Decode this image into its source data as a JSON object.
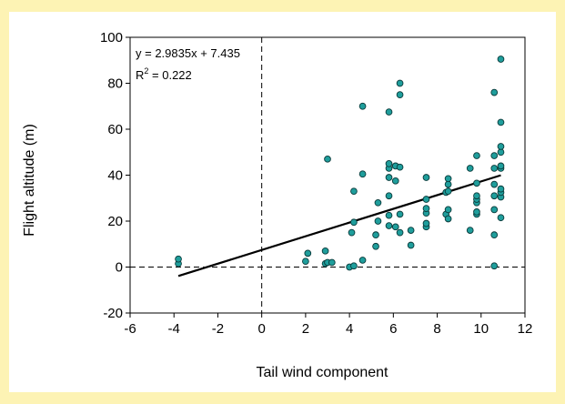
{
  "chart_data": {
    "type": "scatter",
    "xlabel": "Tail wind component",
    "ylabel": "Flight altitude (m)",
    "xlim": [
      -6,
      12
    ],
    "ylim": [
      -20,
      100
    ],
    "x_ticks": [
      -6,
      -4,
      -2,
      0,
      2,
      4,
      6,
      8,
      10,
      12
    ],
    "y_ticks": [
      -20,
      0,
      20,
      40,
      60,
      80,
      100
    ],
    "x_tick_labels": [
      "-6",
      "-4",
      "-2",
      "0",
      "2",
      "4",
      "6",
      "8",
      "10",
      "12"
    ],
    "y_tick_labels": [
      "-20",
      "0",
      "20",
      "40",
      "60",
      "80",
      "100"
    ],
    "grid": false,
    "reference_lines": {
      "x": 0,
      "y": 0,
      "style": "dashed"
    },
    "regression": {
      "slope": 2.9835,
      "intercept": 7.435,
      "x_range": [
        -3.8,
        10.9
      ],
      "equation_label": "y = 2.9835x + 7.435",
      "r2_prefix": "R",
      "r2_sup": "2",
      "r2_value_label": " = 0.222"
    },
    "marker_color": "#1f9e9c",
    "marker_edge": "#0a3a3a",
    "points": [
      {
        "x": -3.8,
        "y": 1.5
      },
      {
        "x": -3.8,
        "y": 3.5
      },
      {
        "x": 2.0,
        "y": 2.5
      },
      {
        "x": 2.1,
        "y": 6.0
      },
      {
        "x": 2.9,
        "y": 1.5
      },
      {
        "x": 2.9,
        "y": 7.0
      },
      {
        "x": 3.0,
        "y": 2.0
      },
      {
        "x": 3.0,
        "y": 47.0
      },
      {
        "x": 3.2,
        "y": 2.0
      },
      {
        "x": 4.0,
        "y": 0.0
      },
      {
        "x": 4.1,
        "y": 15.0
      },
      {
        "x": 4.2,
        "y": 0.5
      },
      {
        "x": 4.2,
        "y": 19.5
      },
      {
        "x": 4.2,
        "y": 33.0
      },
      {
        "x": 4.6,
        "y": 3.0
      },
      {
        "x": 4.6,
        "y": 40.5
      },
      {
        "x": 4.6,
        "y": 70.0
      },
      {
        "x": 5.2,
        "y": 9.0
      },
      {
        "x": 5.2,
        "y": 14.0
      },
      {
        "x": 5.3,
        "y": 20.0
      },
      {
        "x": 5.3,
        "y": 28.0
      },
      {
        "x": 5.8,
        "y": 18.0
      },
      {
        "x": 5.8,
        "y": 22.5
      },
      {
        "x": 5.8,
        "y": 31.0
      },
      {
        "x": 5.8,
        "y": 39.0
      },
      {
        "x": 5.8,
        "y": 43.0
      },
      {
        "x": 5.8,
        "y": 45.0
      },
      {
        "x": 5.8,
        "y": 67.5
      },
      {
        "x": 6.1,
        "y": 17.5
      },
      {
        "x": 6.1,
        "y": 37.5
      },
      {
        "x": 6.1,
        "y": 44.0
      },
      {
        "x": 6.3,
        "y": 15.0
      },
      {
        "x": 6.3,
        "y": 23.0
      },
      {
        "x": 6.3,
        "y": 43.5
      },
      {
        "x": 6.3,
        "y": 75.0
      },
      {
        "x": 6.3,
        "y": 80.0
      },
      {
        "x": 6.8,
        "y": 9.5
      },
      {
        "x": 6.8,
        "y": 16.0
      },
      {
        "x": 7.5,
        "y": 17.5
      },
      {
        "x": 7.5,
        "y": 19.0
      },
      {
        "x": 7.5,
        "y": 23.5
      },
      {
        "x": 7.5,
        "y": 25.5
      },
      {
        "x": 7.5,
        "y": 29.5
      },
      {
        "x": 7.5,
        "y": 39.0
      },
      {
        "x": 8.4,
        "y": 23.0
      },
      {
        "x": 8.4,
        "y": 32.5
      },
      {
        "x": 8.5,
        "y": 21.0
      },
      {
        "x": 8.5,
        "y": 25.0
      },
      {
        "x": 8.5,
        "y": 33.0
      },
      {
        "x": 8.5,
        "y": 36.0
      },
      {
        "x": 8.5,
        "y": 38.5
      },
      {
        "x": 9.5,
        "y": 16.0
      },
      {
        "x": 9.5,
        "y": 43.0
      },
      {
        "x": 9.8,
        "y": 23.0
      },
      {
        "x": 9.8,
        "y": 24.0
      },
      {
        "x": 9.8,
        "y": 28.0
      },
      {
        "x": 9.8,
        "y": 29.5
      },
      {
        "x": 9.8,
        "y": 31.0
      },
      {
        "x": 9.8,
        "y": 36.5
      },
      {
        "x": 9.8,
        "y": 48.5
      },
      {
        "x": 10.6,
        "y": 0.5
      },
      {
        "x": 10.6,
        "y": 14.0
      },
      {
        "x": 10.6,
        "y": 25.0
      },
      {
        "x": 10.6,
        "y": 31.0
      },
      {
        "x": 10.6,
        "y": 36.0
      },
      {
        "x": 10.6,
        "y": 43.0
      },
      {
        "x": 10.6,
        "y": 48.5
      },
      {
        "x": 10.6,
        "y": 76.0
      },
      {
        "x": 10.9,
        "y": 21.5
      },
      {
        "x": 10.9,
        "y": 30.5
      },
      {
        "x": 10.9,
        "y": 32.5
      },
      {
        "x": 10.9,
        "y": 34.0
      },
      {
        "x": 10.9,
        "y": 43.0
      },
      {
        "x": 10.9,
        "y": 44.0
      },
      {
        "x": 10.9,
        "y": 50.0
      },
      {
        "x": 10.9,
        "y": 52.5
      },
      {
        "x": 10.9,
        "y": 63.0
      },
      {
        "x": 10.9,
        "y": 90.5
      }
    ]
  }
}
